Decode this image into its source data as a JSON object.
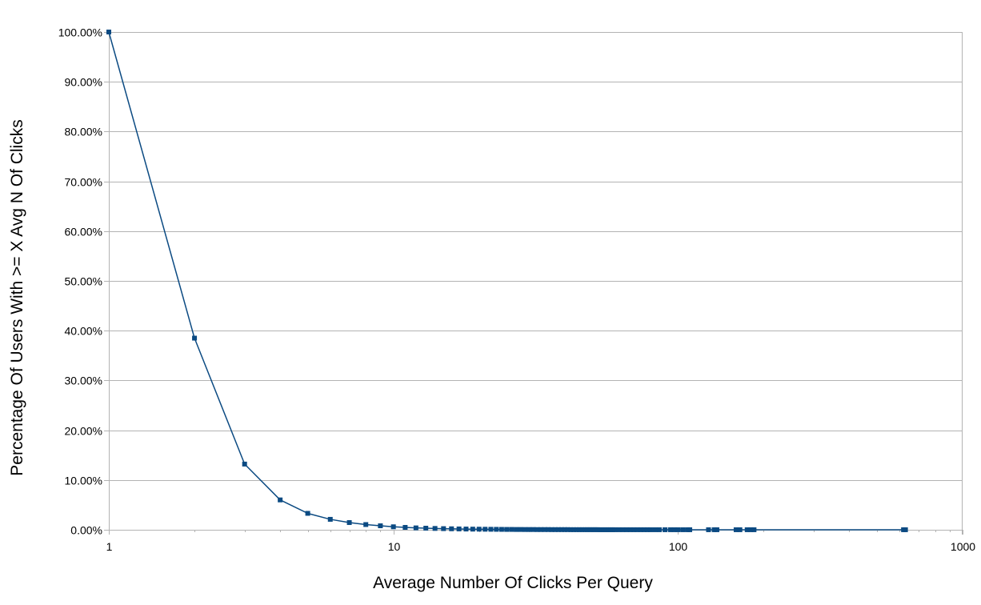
{
  "chart_data": {
    "type": "line",
    "title": "",
    "xlabel": "Average Number Of Clicks Per Query",
    "ylabel": "Percentage Of Users With >= X Avg N Of Clicks",
    "x_scale": "log",
    "xlim": [
      1,
      1000
    ],
    "ylim": [
      0,
      100
    ],
    "grid": "horizontal",
    "legend": "none",
    "x_ticks": [
      "1",
      "10",
      "100",
      "1000"
    ],
    "x_tick_values": [
      1,
      10,
      100,
      1000
    ],
    "y_ticks": [
      "0.00%",
      "10.00%",
      "20.00%",
      "30.00%",
      "40.00%",
      "50.00%",
      "60.00%",
      "70.00%",
      "80.00%",
      "90.00%",
      "100.00%"
    ],
    "y_tick_values": [
      0,
      10,
      20,
      30,
      40,
      50,
      60,
      70,
      80,
      90,
      100
    ],
    "colors": {
      "series": "#0b4a82",
      "grid": "#b3b3b3",
      "axis": "#b3b3b3"
    },
    "series": [
      {
        "x": [
          1,
          2,
          3,
          4,
          5,
          6,
          7,
          8,
          9,
          10,
          11,
          12,
          13,
          14,
          15,
          16,
          17,
          18,
          19,
          20,
          21,
          22,
          23,
          24,
          25,
          26,
          27,
          28,
          29,
          30,
          31,
          32,
          33,
          34,
          35,
          36,
          37,
          38,
          39,
          40,
          41,
          42,
          43,
          44,
          45,
          46,
          47,
          48,
          49,
          50,
          51,
          52,
          53,
          54,
          55,
          56,
          57,
          58,
          59,
          60,
          62,
          64,
          66,
          68,
          70,
          72,
          74,
          76,
          78,
          80,
          83,
          86,
          90,
          94,
          97,
          100,
          104,
          108,
          110,
          128,
          134,
          137,
          160,
          165,
          175,
          180,
          185,
          620,
          630
        ],
        "values": [
          100,
          38.5,
          13.2,
          6.0,
          3.3,
          2.1,
          1.45,
          1.05,
          0.8,
          0.6,
          0.48,
          0.38,
          0.32,
          0.27,
          0.23,
          0.2,
          0.17,
          0.15,
          0.13,
          0.12,
          0.11,
          0.1,
          0.09,
          0.08,
          0.07,
          0.07,
          0.06,
          0.06,
          0.05,
          0.05,
          0.05,
          0.04,
          0.04,
          0.04,
          0.04,
          0.03,
          0.03,
          0.03,
          0.03,
          0.03,
          0.03,
          0.02,
          0.02,
          0.02,
          0.02,
          0.02,
          0.02,
          0.02,
          0.02,
          0.02,
          0.02,
          0.02,
          0.01,
          0.01,
          0.01,
          0.01,
          0.01,
          0.01,
          0.01,
          0.01,
          0.01,
          0.01,
          0.01,
          0.01,
          0.01,
          0.01,
          0.01,
          0.01,
          0.01,
          0.01,
          0.01,
          0.01,
          0.01,
          0.01,
          0.01,
          0.01,
          0.01,
          0.01,
          0.01,
          0.01,
          0.01,
          0.01,
          0.01,
          0.01,
          0.01,
          0.01,
          0.01,
          0.01,
          0.01
        ]
      }
    ]
  }
}
